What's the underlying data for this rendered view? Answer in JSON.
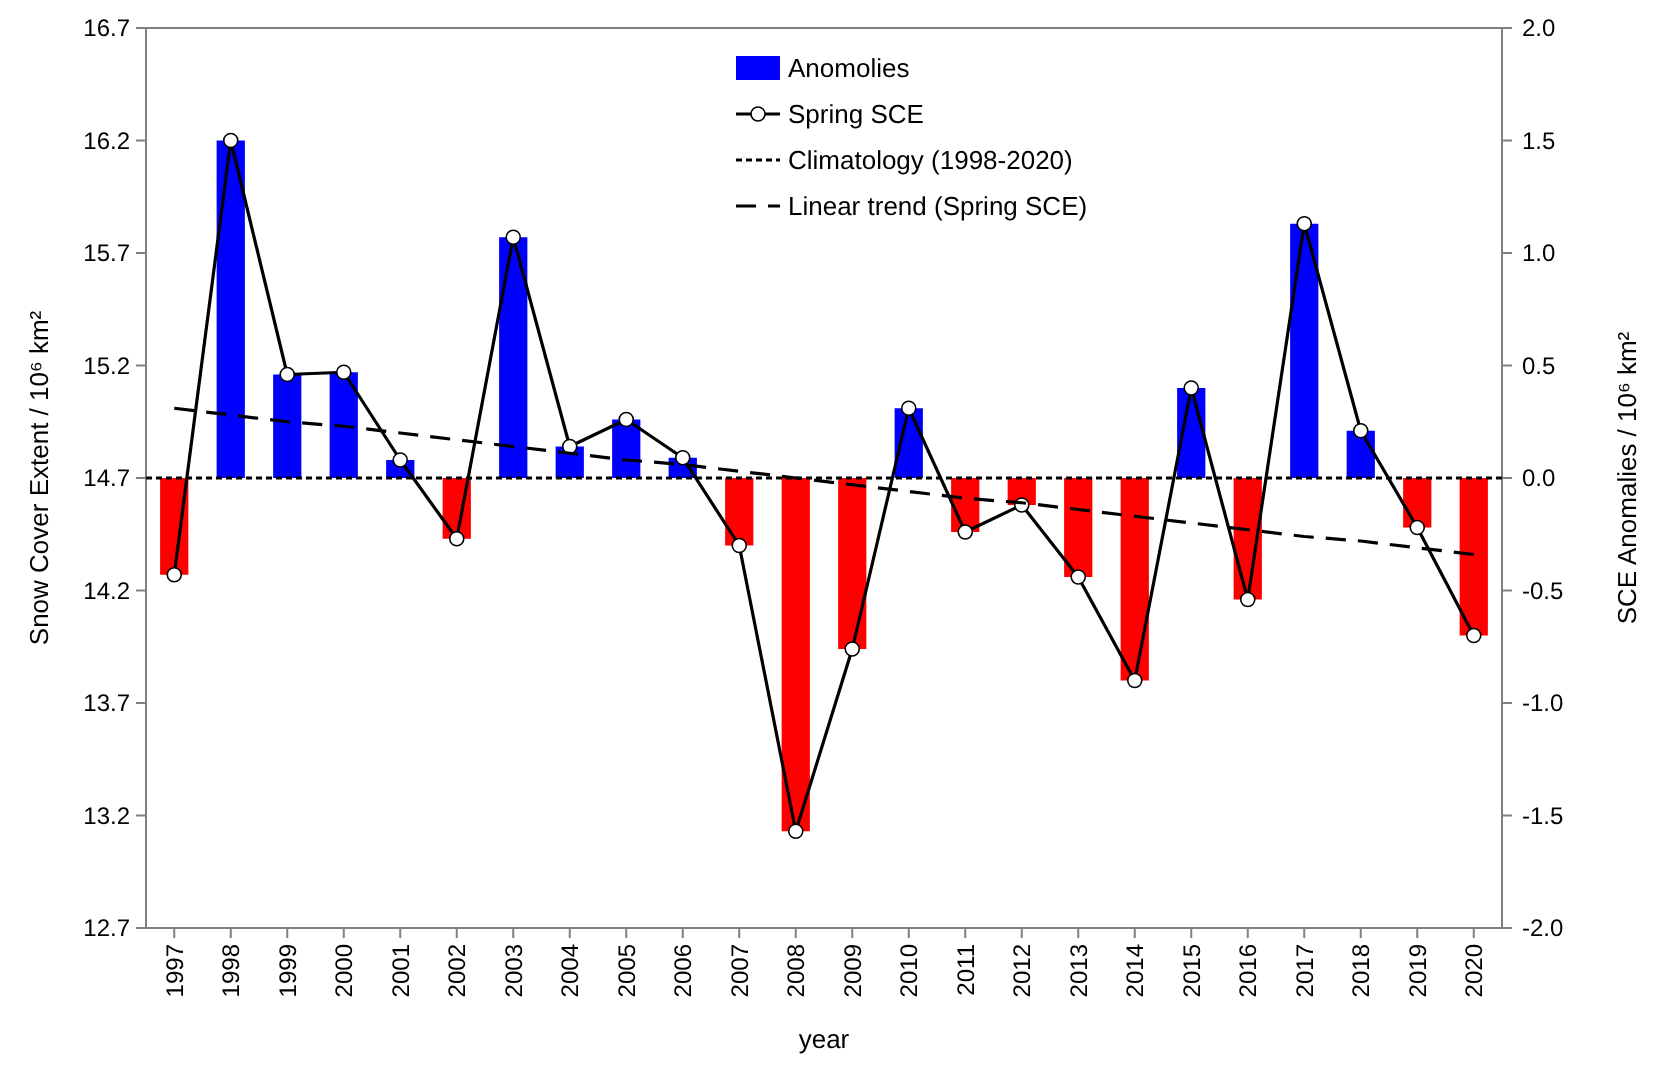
{
  "chart_data": {
    "type": "bar",
    "xlabel": "year",
    "ylabel": "Snow Cover Extent / 10⁶ km²",
    "y2label": "SCE Anomalies / 10⁶ km²",
    "categories": [
      "1997",
      "1998",
      "1999",
      "2000",
      "2001",
      "2002",
      "2003",
      "2004",
      "2005",
      "2006",
      "2007",
      "2008",
      "2009",
      "2010",
      "2011",
      "2012",
      "2013",
      "2014",
      "2015",
      "2016",
      "2017",
      "2018",
      "2019",
      "2020"
    ],
    "series": [
      {
        "name": "Anomolies",
        "axis": "y2",
        "color": "#0000ff",
        "colors": [
          "#ff0000",
          "#0000ff",
          "#0000ff",
          "#0000ff",
          "#0000ff",
          "#ff0000",
          "#0000ff",
          "#0000ff",
          "#0000ff",
          "#0000ff",
          "#ff0000",
          "#ff0000",
          "#ff0000",
          "#0000ff",
          "#ff0000",
          "#ff0000",
          "#ff0000",
          "#ff0000",
          "#0000ff",
          "#ff0000",
          "#0000ff",
          "#0000ff",
          "#ff0000",
          "#ff0000"
        ],
        "values": [
          -0.43,
          1.5,
          0.46,
          0.47,
          0.08,
          -0.27,
          1.07,
          0.14,
          0.26,
          0.09,
          -0.3,
          -1.57,
          -0.76,
          0.31,
          -0.24,
          -0.12,
          -0.44,
          -0.9,
          0.4,
          -0.54,
          1.13,
          0.21,
          -0.22,
          -0.7
        ]
      },
      {
        "name": "Spring SCE",
        "type": "line",
        "color": "#000000",
        "marker": "circle",
        "line_style": "solid",
        "values": [
          14.27,
          16.2,
          15.16,
          15.17,
          14.78,
          14.43,
          15.77,
          14.84,
          14.96,
          14.79,
          14.4,
          13.13,
          13.94,
          15.01,
          14.46,
          14.58,
          14.26,
          13.8,
          15.1,
          14.16,
          15.83,
          14.91,
          14.48,
          14.0
        ]
      },
      {
        "name": "Linear trend (Spring SCE)",
        "type": "line",
        "color": "#000000",
        "marker": "none",
        "line_style": "dashed",
        "values": [
          15.01,
          14.98,
          14.95,
          14.93,
          14.9,
          14.87,
          14.84,
          14.81,
          14.78,
          14.76,
          14.73,
          14.7,
          14.67,
          14.64,
          14.61,
          14.59,
          14.56,
          14.53,
          14.5,
          14.47,
          14.44,
          14.42,
          14.39,
          14.36
        ]
      }
    ],
    "ref_lines": [
      {
        "axis": "y",
        "value": 14.7,
        "label": "Climatology (1998-2020)",
        "color": "#000000",
        "line_style": "dotted"
      }
    ],
    "ylim": [
      12.7,
      16.7
    ],
    "yticks": [
      12.7,
      13.2,
      13.7,
      14.2,
      14.7,
      15.2,
      15.7,
      16.2,
      16.7
    ],
    "y2lim": [
      -2,
      2
    ],
    "y2ticks": [
      {
        "value": -2,
        "label": "-2.0"
      },
      {
        "value": -1.5,
        "label": "-1.5"
      },
      {
        "value": -1,
        "label": "-1.0"
      },
      {
        "value": -0.5,
        "label": "-0.5"
      },
      {
        "value": 0,
        "label": "0.0"
      },
      {
        "value": 0.5,
        "label": "0.5"
      },
      {
        "value": 1,
        "label": "1.0"
      },
      {
        "value": 1.5,
        "label": "1.5"
      },
      {
        "value": 2,
        "label": "2.0"
      }
    ],
    "grid": false,
    "legend": "top"
  }
}
